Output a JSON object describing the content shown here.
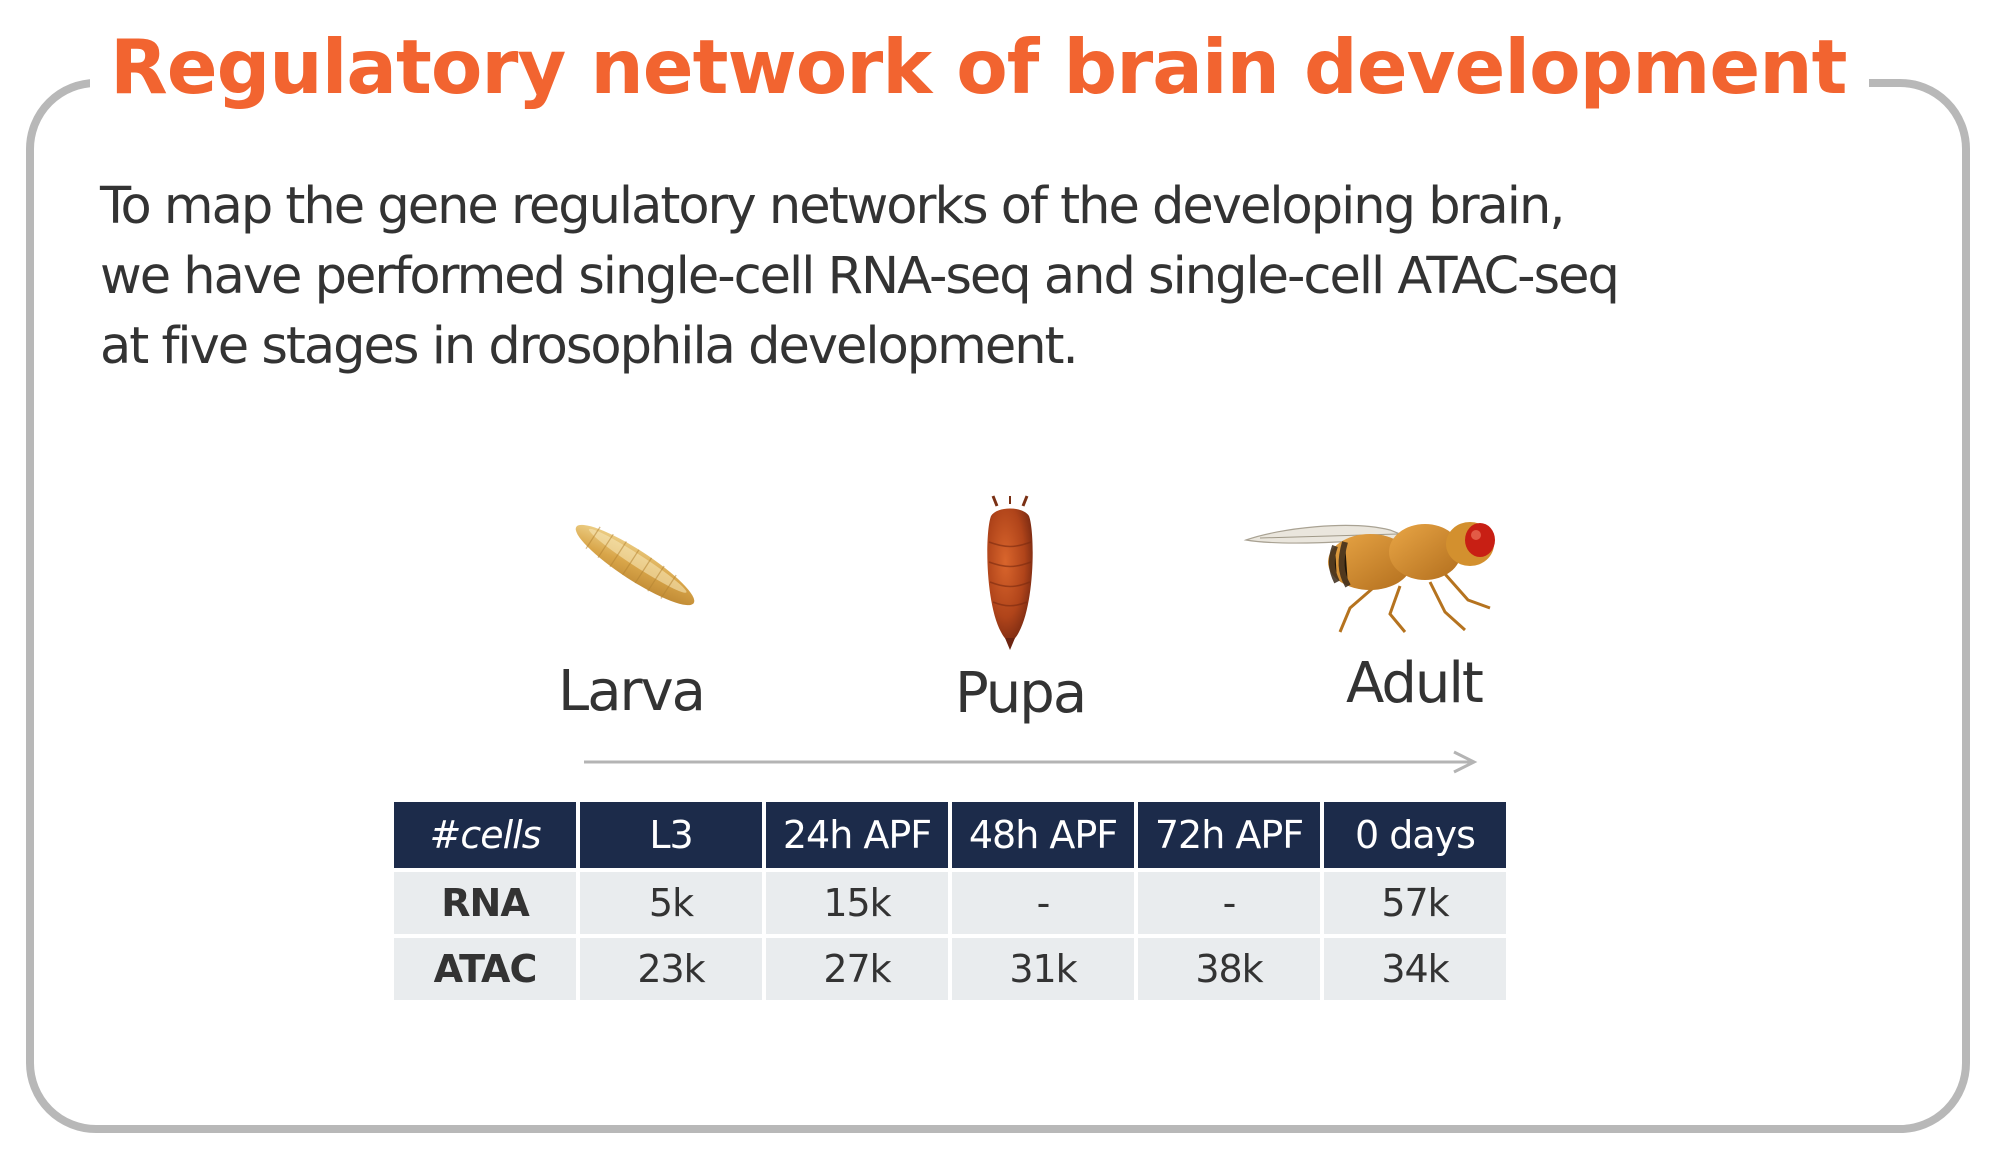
{
  "title": "Regulatory network of brain development",
  "intro": {
    "line1": "To map the gene regulatory networks of the developing brain,",
    "line2": "we have performed single-cell RNA-seq and single-cell ATAC-seq",
    "line3": "at five stages in drosophila development."
  },
  "stages": {
    "larva": "Larva",
    "pupa": "Pupa",
    "adult": "Adult"
  },
  "table": {
    "corner": "#cells",
    "headers": [
      "L3",
      "24h APF",
      "48h APF",
      "72h APF",
      "0 days"
    ],
    "rows": [
      {
        "label": "RNA",
        "values": [
          "5k",
          "15k",
          "-",
          "-",
          "57k"
        ]
      },
      {
        "label": "ATAC",
        "values": [
          "23k",
          "27k",
          "31k",
          "38k",
          "34k"
        ]
      }
    ]
  },
  "colors": {
    "title": "#f26430",
    "header_bg": "#1c2b4a",
    "cell_bg": "#e9ecee",
    "frame": "#b8b8b8"
  }
}
